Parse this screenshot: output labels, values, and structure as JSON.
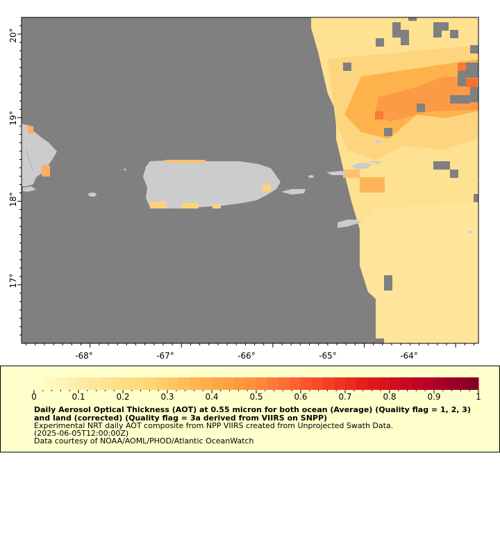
{
  "map": {
    "x_axis_labels": [
      "-68°",
      "-67°",
      "-66°",
      "-65°",
      "-64°"
    ],
    "y_axis_labels": [
      "20°",
      "19°",
      "18°",
      "17°"
    ],
    "lon_range": [
      -68.75,
      -63.75
    ],
    "lat_range": [
      16.3,
      20.2
    ],
    "colors": {
      "no_data": "#808080",
      "land": "#cccccc",
      "frame": "#000000"
    }
  },
  "colorbar": {
    "ticks": [
      "0",
      "0.1",
      "0.2",
      "0.3",
      "0.4",
      "0.5",
      "0.6",
      "0.7",
      "0.8",
      "0.9",
      "1"
    ],
    "range": [
      0,
      1
    ],
    "colors": [
      "#ffffcc",
      "#fee7a0",
      "#fed976",
      "#feb24c",
      "#fd8d3c",
      "#fc4e2a",
      "#e31a1c",
      "#bd0026",
      "#800026"
    ]
  },
  "legend": {
    "title": "Daily Aerosol Optical Thickness (AOT) at 0.55 micron for both ocean (Average) (Quality flag = 1, 2, 3) and land (corrected) (Quality flag = 3a derived from VIIRS on SNPP)",
    "description": "Experimental NRT daily AOT composite from NPP VIIRS created from Unprojected Swath Data.",
    "time": "(2025-06-05T12:00:00Z)",
    "credit": "Data courtesy of NOAA/AOML/PHOD/Atlantic OceanWatch"
  }
}
